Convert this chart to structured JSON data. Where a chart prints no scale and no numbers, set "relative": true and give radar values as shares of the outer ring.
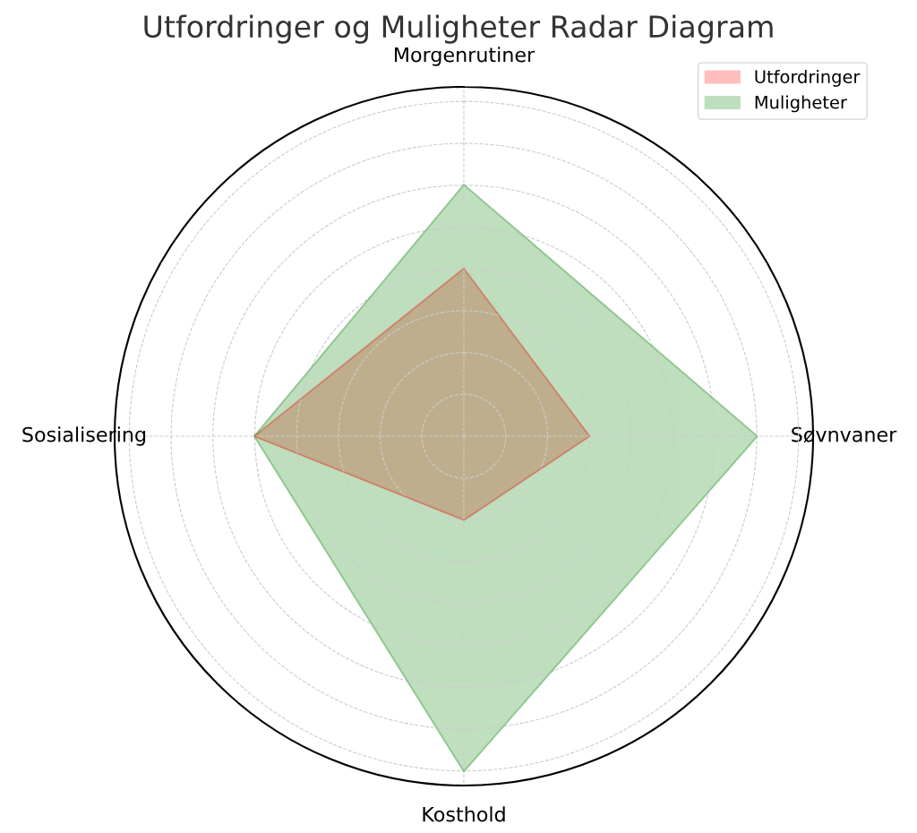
{
  "chart_data": {
    "type": "radar",
    "title": "Utfordringer og Muligheter Radar Diagram",
    "categories": [
      "Morgenrutiner",
      "Søvnvaner",
      "Kosthold",
      "Sosialisering"
    ],
    "relative": true,
    "grid": true,
    "legend": "top right",
    "series": [
      {
        "name": "Utfordringer",
        "color": "#ff0000",
        "values": [
          0.48,
          0.36,
          0.24,
          0.6
        ]
      },
      {
        "name": "Muligheter",
        "color": "#008000",
        "values": [
          0.72,
          0.84,
          0.96,
          0.6
        ]
      }
    ]
  }
}
